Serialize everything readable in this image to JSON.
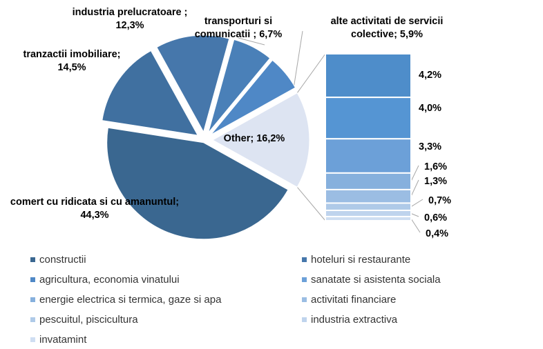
{
  "chart_data": {
    "type": "pie",
    "subtype": "bar-of-pie",
    "pie_slices": [
      {
        "label": "comert cu ridicata si cu amanuntul; 44,3%",
        "value": 44.3,
        "color": "#3a6790"
      },
      {
        "label": "tranzactii imobiliare; 14,5%",
        "value": 14.5,
        "color": "#4070a0"
      },
      {
        "label": "industria prelucratoare ; 12,3%",
        "value": 12.3,
        "color": "#4677ab"
      },
      {
        "label": "transporturi si comunicatii ; 6,7%",
        "value": 6.7,
        "color": "#4a80b8"
      },
      {
        "label": "alte activitati de servicii colective; 5,9%",
        "value": 5.9,
        "color": "#4f88c6"
      },
      {
        "label": "Other; 16,2%",
        "value": 16.2,
        "color": "#dde4f2"
      }
    ],
    "bar_stack": [
      {
        "label": "4,2%",
        "value": 4.2,
        "color": "#4e8dca"
      },
      {
        "label": "4,0%",
        "value": 4.0,
        "color": "#5595d3"
      },
      {
        "label": "3,3%",
        "value": 3.3,
        "color": "#6ca0d8"
      },
      {
        "label": "1,6%",
        "value": 1.6,
        "color": "#86b0dd"
      },
      {
        "label": "1,3%",
        "value": 1.3,
        "color": "#9bbde3"
      },
      {
        "label": "0,7%",
        "value": 0.7,
        "color": "#afcae8"
      },
      {
        "label": "0,6%",
        "value": 0.6,
        "color": "#bfd4ed"
      },
      {
        "label": "0,4%",
        "value": 0.4,
        "color": "#cfdef2"
      }
    ],
    "legend": [
      {
        "label": "constructii",
        "color": "#3a6790"
      },
      {
        "label": "hoteluri si restaurante",
        "color": "#4677ab"
      },
      {
        "label": "agricultura, economia vinatului",
        "color": "#4f88c6"
      },
      {
        "label": "sanatate si asistenta sociala",
        "color": "#6ca0d8"
      },
      {
        "label": "energie electrica si termica, gaze si apa",
        "color": "#86b0dd"
      },
      {
        "label": "activitati financiare",
        "color": "#9bbde3"
      },
      {
        "label": "pescuitul, piscicultura",
        "color": "#afcae8"
      },
      {
        "label": "industria extractiva",
        "color": "#bfd4ed"
      },
      {
        "label": "invatamint",
        "color": "#cfdef2"
      }
    ],
    "legend_position": "bottom"
  }
}
